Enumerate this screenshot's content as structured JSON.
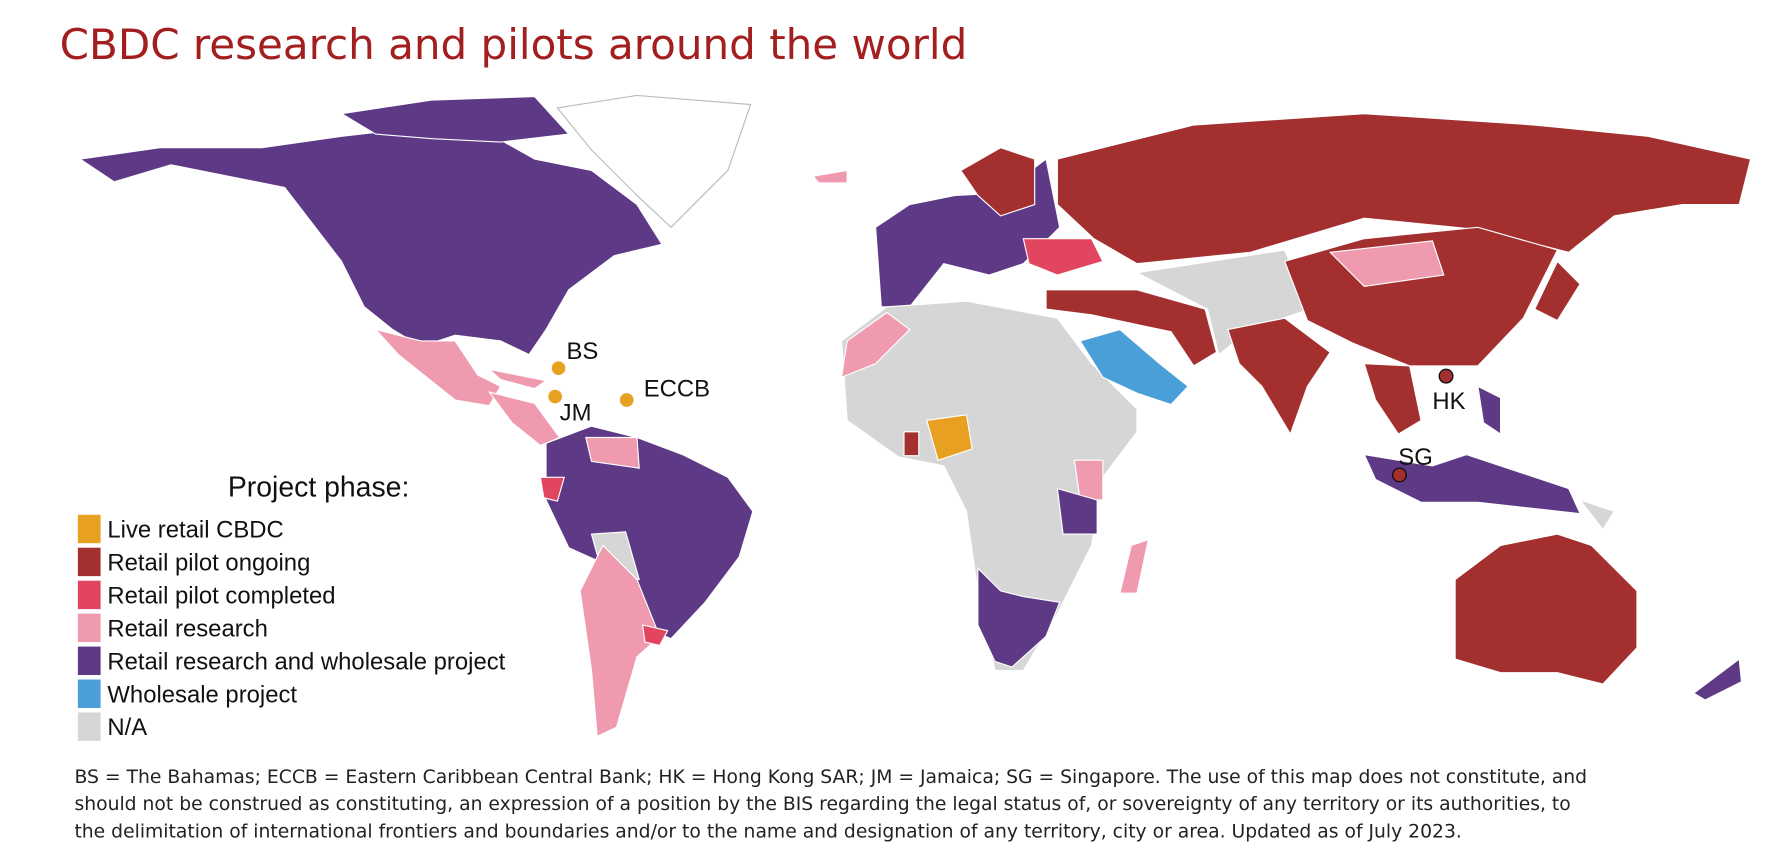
{
  "title": "CBDC research and pilots around the world",
  "legend": {
    "title": "Project phase:",
    "items": [
      {
        "label": "Live retail CBDC",
        "color": "#e8a020"
      },
      {
        "label": "Retail pilot ongoing",
        "color": "#a3302f"
      },
      {
        "label": "Retail pilot completed",
        "color": "#e2455f"
      },
      {
        "label": "Retail research",
        "color": "#f09ab0"
      },
      {
        "label": "Retail research and wholesale project",
        "color": "#5e3a86"
      },
      {
        "label": "Wholesale project",
        "color": "#4a9fd8"
      },
      {
        "label": "N/A",
        "color": "#d6d6d6"
      }
    ]
  },
  "markers": [
    "BS",
    "JM",
    "ECCB",
    "HK",
    "SG"
  ],
  "note": [
    "BS = The Bahamas; ECCB = Eastern Caribbean Central Bank; HK = Hong Kong SAR; JM = Jamaica; SG = Singapore. The use of this map does not constitute, and",
    "should not be construed as constituting, an expression of a position by the BIS regarding the legal status of, or sovereignty of any territory or its authorities, to",
    "the delimitation of international frontiers and boundaries and/or to the name and designation of any territory, city or area. Updated as of July 2023."
  ]
}
